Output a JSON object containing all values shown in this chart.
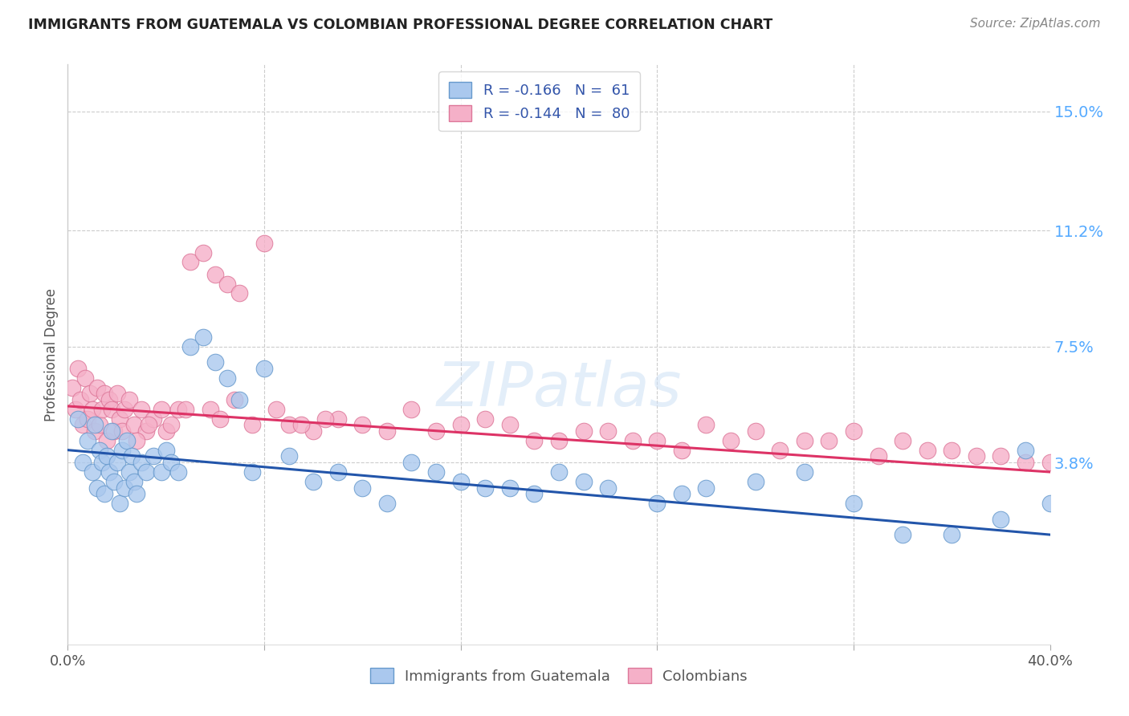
{
  "title": "IMMIGRANTS FROM GUATEMALA VS COLOMBIAN PROFESSIONAL DEGREE CORRELATION CHART",
  "source": "Source: ZipAtlas.com",
  "ylabel": "Professional Degree",
  "legend_label1": "Immigrants from Guatemala",
  "legend_label2": "Colombians",
  "background_color": "#ffffff",
  "grid_color": "#cccccc",
  "title_color": "#222222",
  "source_color": "#888888",
  "ytick_color": "#55aaff",
  "blue_dot_color": "#aac8ee",
  "blue_dot_edge": "#6699cc",
  "pink_dot_color": "#f5b0c8",
  "pink_dot_edge": "#dd7799",
  "blue_line_color": "#2255aa",
  "pink_line_color": "#dd3366",
  "xmin": 0.0,
  "xmax": 40.0,
  "ymin": -2.0,
  "ymax": 16.5,
  "ytick_values": [
    3.8,
    7.5,
    11.2,
    15.0
  ],
  "ytick_labels": [
    "3.8%",
    "7.5%",
    "11.2%",
    "15.0%"
  ],
  "blue_line_x0": 0.0,
  "blue_line_y0": 4.2,
  "blue_line_x1": 40.0,
  "blue_line_y1": 1.5,
  "pink_line_x0": 0.0,
  "pink_line_y0": 5.6,
  "pink_line_x1": 40.0,
  "pink_line_y1": 3.5,
  "guatemala_x": [
    0.4,
    0.6,
    0.8,
    1.0,
    1.1,
    1.2,
    1.3,
    1.4,
    1.5,
    1.6,
    1.7,
    1.8,
    1.9,
    2.0,
    2.1,
    2.2,
    2.3,
    2.4,
    2.5,
    2.6,
    2.7,
    2.8,
    3.0,
    3.2,
    3.5,
    3.8,
    4.0,
    4.2,
    4.5,
    5.0,
    5.5,
    6.0,
    6.5,
    7.0,
    7.5,
    8.0,
    9.0,
    10.0,
    11.0,
    12.0,
    13.0,
    14.0,
    15.0,
    16.0,
    18.0,
    20.0,
    21.0,
    22.0,
    24.0,
    25.0,
    26.0,
    28.0,
    30.0,
    32.0,
    34.0,
    36.0,
    38.0,
    39.0,
    40.0,
    19.0,
    17.0
  ],
  "guatemala_y": [
    5.2,
    3.8,
    4.5,
    3.5,
    5.0,
    3.0,
    4.2,
    3.8,
    2.8,
    4.0,
    3.5,
    4.8,
    3.2,
    3.8,
    2.5,
    4.2,
    3.0,
    4.5,
    3.5,
    4.0,
    3.2,
    2.8,
    3.8,
    3.5,
    4.0,
    3.5,
    4.2,
    3.8,
    3.5,
    7.5,
    7.8,
    7.0,
    6.5,
    5.8,
    3.5,
    6.8,
    4.0,
    3.2,
    3.5,
    3.0,
    2.5,
    3.8,
    3.5,
    3.2,
    3.0,
    3.5,
    3.2,
    3.0,
    2.5,
    2.8,
    3.0,
    3.2,
    3.5,
    2.5,
    1.5,
    1.5,
    2.0,
    4.2,
    2.5,
    2.8,
    3.0
  ],
  "colombian_x": [
    0.2,
    0.3,
    0.4,
    0.5,
    0.6,
    0.7,
    0.8,
    0.9,
    1.0,
    1.1,
    1.2,
    1.3,
    1.4,
    1.5,
    1.6,
    1.7,
    1.8,
    1.9,
    2.0,
    2.1,
    2.2,
    2.3,
    2.5,
    2.7,
    3.0,
    3.2,
    3.5,
    3.8,
    4.0,
    4.2,
    4.5,
    5.0,
    5.5,
    6.0,
    6.5,
    7.0,
    8.0,
    9.0,
    10.0,
    11.0,
    12.0,
    13.0,
    14.0,
    15.0,
    16.0,
    17.0,
    18.0,
    20.0,
    22.0,
    24.0,
    26.0,
    28.0,
    30.0,
    32.0,
    34.0,
    36.0,
    38.0,
    40.0,
    5.8,
    6.2,
    7.5,
    8.5,
    9.5,
    10.5,
    19.0,
    21.0,
    23.0,
    25.0,
    27.0,
    29.0,
    31.0,
    33.0,
    35.0,
    37.0,
    39.0,
    2.8,
    3.3,
    4.8,
    6.8
  ],
  "colombian_y": [
    6.2,
    5.5,
    6.8,
    5.8,
    5.0,
    6.5,
    5.2,
    6.0,
    5.5,
    4.8,
    6.2,
    5.0,
    5.5,
    6.0,
    4.5,
    5.8,
    5.5,
    4.8,
    6.0,
    5.2,
    4.8,
    5.5,
    5.8,
    5.0,
    5.5,
    4.8,
    5.2,
    5.5,
    4.8,
    5.0,
    5.5,
    10.2,
    10.5,
    9.8,
    9.5,
    9.2,
    10.8,
    5.0,
    4.8,
    5.2,
    5.0,
    4.8,
    5.5,
    4.8,
    5.0,
    5.2,
    5.0,
    4.5,
    4.8,
    4.5,
    5.0,
    4.8,
    4.5,
    4.8,
    4.5,
    4.2,
    4.0,
    3.8,
    5.5,
    5.2,
    5.0,
    5.5,
    5.0,
    5.2,
    4.5,
    4.8,
    4.5,
    4.2,
    4.5,
    4.2,
    4.5,
    4.0,
    4.2,
    4.0,
    3.8,
    4.5,
    5.0,
    5.5,
    5.8
  ]
}
